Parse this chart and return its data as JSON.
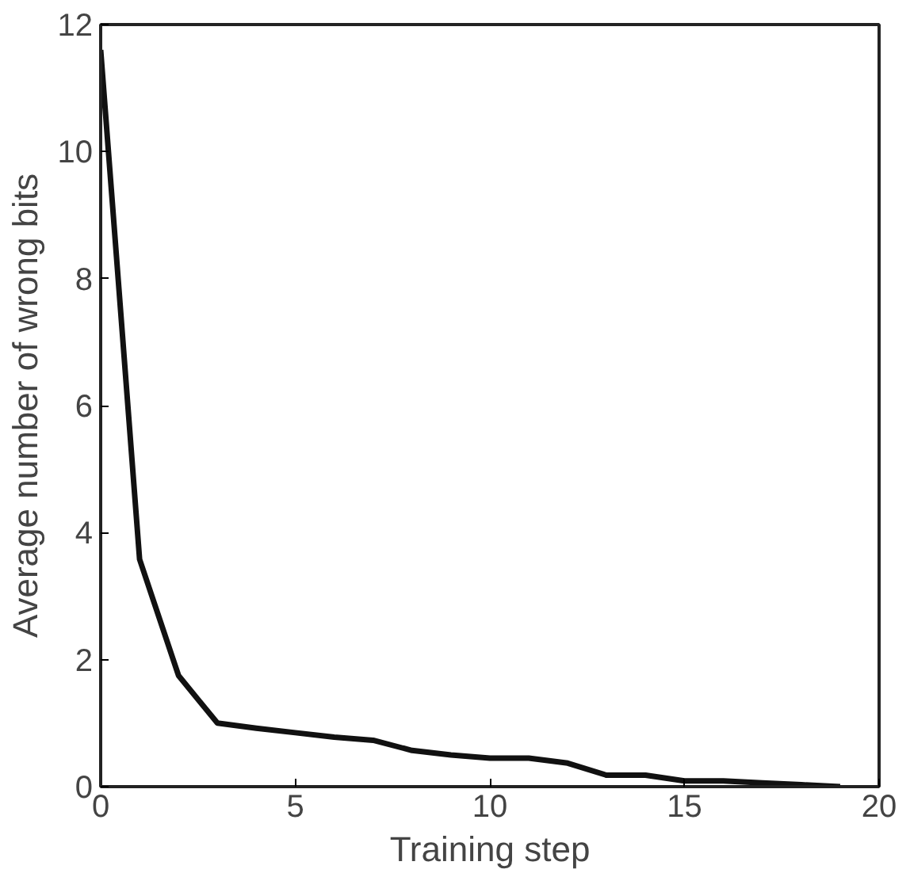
{
  "chart_data": {
    "type": "line",
    "xlabel": "Training step",
    "ylabel": "Average number of wrong bits",
    "x": [
      0,
      1,
      2,
      3,
      4,
      5,
      6,
      7,
      8,
      9,
      10,
      11,
      12,
      13,
      14,
      15,
      16,
      17,
      18,
      19
    ],
    "series": [
      {
        "color": "#111111",
        "values": [
          11.6,
          3.58,
          1.75,
          1.0,
          0.92,
          0.85,
          0.78,
          0.73,
          0.57,
          0.5,
          0.45,
          0.45,
          0.37,
          0.18,
          0.18,
          0.09,
          0.09,
          0.06,
          0.03,
          0.0
        ]
      }
    ],
    "xlim": [
      0,
      20
    ],
    "ylim": [
      0,
      12
    ],
    "xticks": [
      0,
      5,
      10,
      15,
      20
    ],
    "yticks": [
      0,
      2,
      4,
      6,
      8,
      10,
      12
    ],
    "grid": false,
    "marker": "none",
    "line_style": "solid"
  }
}
